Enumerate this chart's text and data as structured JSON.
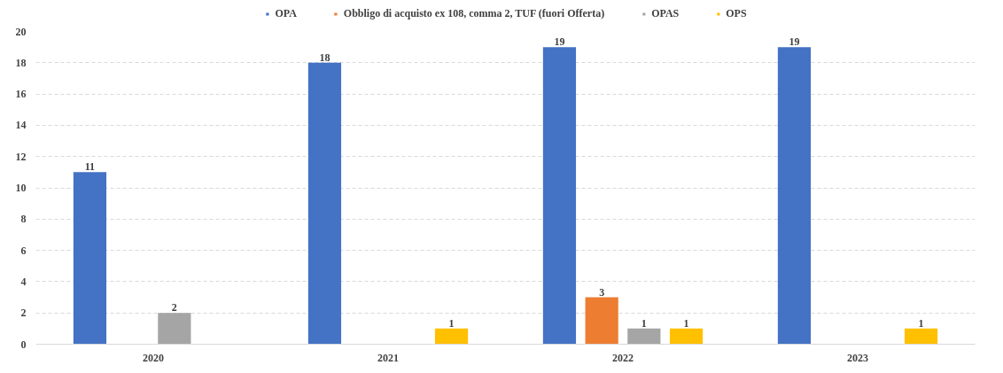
{
  "chart_data": {
    "type": "bar",
    "categories": [
      "2020",
      "2021",
      "2022",
      "2023"
    ],
    "series": [
      {
        "name": "OPA",
        "color": "#4472c4",
        "values": [
          11,
          18,
          19,
          19
        ]
      },
      {
        "name": "Obbligo di acquisto ex 108, comma 2, TUF (fuori Offerta)",
        "color": "#ed7d31",
        "values": [
          null,
          null,
          3,
          null
        ]
      },
      {
        "name": "OPAS",
        "color": "#a5a5a5",
        "values": [
          2,
          null,
          1,
          null
        ]
      },
      {
        "name": "OPS",
        "color": "#ffc000",
        "values": [
          null,
          1,
          1,
          1
        ]
      }
    ],
    "ylim": [
      0,
      20
    ],
    "yticks": [
      0,
      2,
      4,
      6,
      8,
      10,
      12,
      14,
      16,
      18,
      20
    ],
    "grid": "y",
    "legend": "top",
    "data_labels": true
  }
}
